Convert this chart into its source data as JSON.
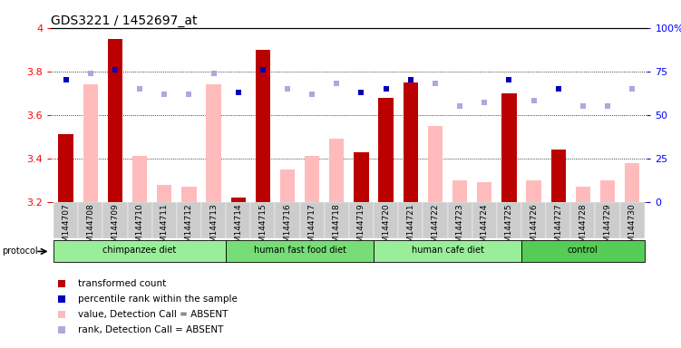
{
  "title": "GDS3221 / 1452697_at",
  "samples": [
    "GSM144707",
    "GSM144708",
    "GSM144709",
    "GSM144710",
    "GSM144711",
    "GSM144712",
    "GSM144713",
    "GSM144714",
    "GSM144715",
    "GSM144716",
    "GSM144717",
    "GSM144718",
    "GSM144719",
    "GSM144720",
    "GSM144721",
    "GSM144722",
    "GSM144723",
    "GSM144724",
    "GSM144725",
    "GSM144726",
    "GSM144727",
    "GSM144728",
    "GSM144729",
    "GSM144730"
  ],
  "transformed_count": [
    3.51,
    null,
    3.95,
    null,
    null,
    null,
    null,
    3.22,
    3.9,
    null,
    null,
    null,
    3.43,
    3.68,
    3.75,
    null,
    null,
    null,
    3.7,
    null,
    3.44,
    null,
    null,
    null
  ],
  "value_absent": [
    null,
    3.74,
    null,
    3.41,
    3.28,
    3.27,
    3.74,
    null,
    null,
    3.35,
    3.41,
    3.49,
    null,
    null,
    null,
    3.55,
    3.3,
    3.29,
    null,
    3.3,
    null,
    3.27,
    3.3,
    3.38
  ],
  "percentile_rank": [
    70,
    null,
    76,
    null,
    null,
    null,
    null,
    63,
    76,
    null,
    null,
    null,
    63,
    65,
    70,
    null,
    null,
    null,
    70,
    null,
    65,
    null,
    null,
    null
  ],
  "rank_absent": [
    null,
    74,
    null,
    65,
    62,
    62,
    74,
    null,
    null,
    65,
    62,
    68,
    null,
    null,
    null,
    68,
    55,
    57,
    null,
    58,
    null,
    55,
    55,
    65
  ],
  "groups": [
    {
      "label": "chimpanzee diet",
      "start": 0,
      "end": 7,
      "color": "#99ee99"
    },
    {
      "label": "human fast food diet",
      "start": 7,
      "end": 13,
      "color": "#77dd77"
    },
    {
      "label": "human cafe diet",
      "start": 13,
      "end": 19,
      "color": "#99ee99"
    },
    {
      "label": "control",
      "start": 19,
      "end": 24,
      "color": "#55cc55"
    }
  ],
  "ylim_left": [
    3.2,
    4.0
  ],
  "ylim_right": [
    0,
    100
  ],
  "bar_width": 0.6,
  "dark_red": "#bb0000",
  "light_red": "#ffbbbb",
  "dark_blue": "#0000bb",
  "light_blue": "#aaaadd",
  "title_fontsize": 10,
  "tick_fontsize": 6.5,
  "label_fontsize": 8
}
